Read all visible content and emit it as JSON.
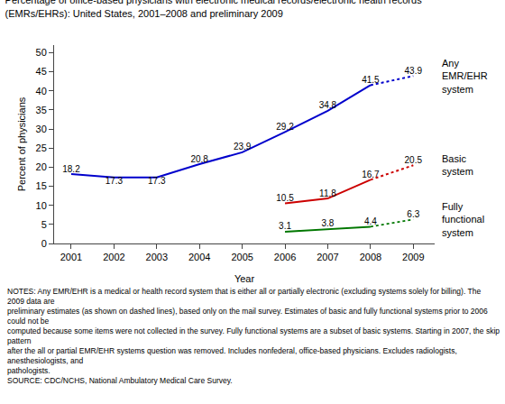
{
  "chart_data": {
    "type": "line",
    "title": "Percentage of office-based physicians with electronic medical records/electronic health records",
    "subtitle": "(EMRs/EHRs): United States, 2001–2008 and preliminary 2009",
    "xlabel": "Year",
    "ylabel": "Percent of physicians",
    "x": [
      2001,
      2002,
      2003,
      2004,
      2005,
      2006,
      2007,
      2008,
      2009
    ],
    "series": [
      {
        "name": "Any\nEMR/EHR\nsystem",
        "color": "#0000CC",
        "line_style": "solid",
        "values": [
          18.2,
          17.3,
          17.3,
          20.8,
          23.9,
          29.2,
          34.8,
          41.5,
          null
        ]
      },
      {
        "color": "#0000CC",
        "line_style": "dotted",
        "values": [
          null,
          null,
          null,
          null,
          null,
          null,
          null,
          41.5,
          43.9
        ]
      },
      {
        "name": "Basic\nsystem",
        "color": "#CC0000",
        "line_style": "solid",
        "values": [
          null,
          null,
          null,
          null,
          null,
          10.5,
          11.8,
          16.7,
          null
        ]
      },
      {
        "color": "#CC0000",
        "line_style": "dotted",
        "values": [
          null,
          null,
          null,
          null,
          null,
          null,
          null,
          16.7,
          20.5
        ]
      },
      {
        "name": "Fully\nfunctional\nsystem",
        "color": "#007700",
        "line_style": "solid",
        "values": [
          null,
          null,
          null,
          null,
          null,
          3.1,
          3.8,
          4.4,
          null
        ]
      },
      {
        "color": "#007700",
        "line_style": "dotted",
        "values": [
          null,
          null,
          null,
          null,
          null,
          null,
          null,
          4.4,
          6.3
        ]
      }
    ],
    "xlim": [
      2000.6,
      2009.5
    ],
    "xticks": [
      2001,
      2002,
      2003,
      2004,
      2005,
      2006,
      2007,
      2008,
      2009
    ],
    "ylim": [
      0,
      52
    ],
    "yticks": [
      0,
      5,
      10,
      15,
      20,
      25,
      30,
      35,
      40,
      45,
      50
    ],
    "grid": false,
    "data_labels": true,
    "annotations": [
      "NOTES: Any EMR/EHR is a medical or health record system that is either all or partially electronic (excluding systems solely for billing). The 2009 data are",
      "preliminary estimates (as shown on dashed lines), based only on the mail survey. Estimates of basic and fully functional systems prior to 2006 could not be",
      "computed because some items were not collected in the survey. Fully functional systems are a subset of basic systems. Starting in 2007, the skip pattern",
      "after the all or partial EMR/EHR systems question was removed. Includes nonfederal, office-based physicians. Excludes radiologists, anesthesiologists, and",
      "pathologists.",
      "SOURCE: CDC/NCHS, National Ambulatory Medical Care Survey."
    ]
  }
}
